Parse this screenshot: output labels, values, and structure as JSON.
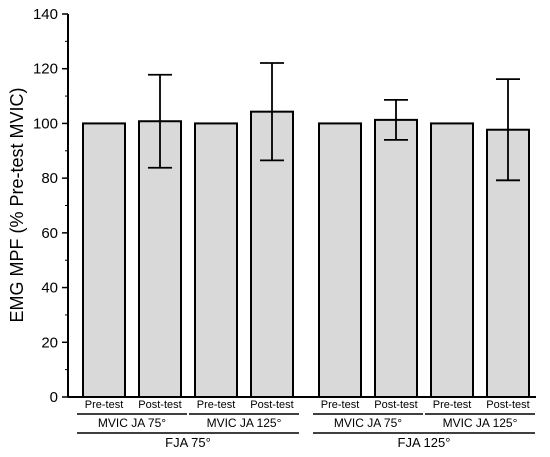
{
  "chart_data": {
    "type": "bar",
    "ylabel": "EMG MPF (% Pre-test MVIC)",
    "xlabel": "",
    "ylim": [
      0,
      140
    ],
    "ytick_step": 20,
    "yticks": [
      "0",
      "20",
      "40",
      "60",
      "80",
      "100",
      "120",
      "140"
    ],
    "bar_color": "#d9d9d9",
    "categories": [
      "Pre-test",
      "Post-test",
      "Pre-test",
      "Post-test",
      "Pre-test",
      "Post-test",
      "Pre-test",
      "Post-test"
    ],
    "values": [
      100,
      100.8,
      100,
      104.3,
      100,
      101.3,
      100,
      97.7
    ],
    "errors": [
      null,
      17.0,
      null,
      17.8,
      null,
      7.3,
      null,
      18.5
    ],
    "groups": [
      {
        "label": "MVIC JA 75°",
        "span": [
          0,
          1
        ]
      },
      {
        "label": "MVIC JA 125°",
        "span": [
          2,
          3
        ]
      },
      {
        "label": "MVIC JA 75°",
        "span": [
          4,
          5
        ]
      },
      {
        "label": "MVIC JA 125°",
        "span": [
          6,
          7
        ]
      }
    ],
    "supergroups": [
      {
        "label": "FJA 75°",
        "span": [
          0,
          3
        ]
      },
      {
        "label": "FJA 125°",
        "span": [
          4,
          7
        ]
      }
    ],
    "grid": false,
    "legend": "none"
  }
}
